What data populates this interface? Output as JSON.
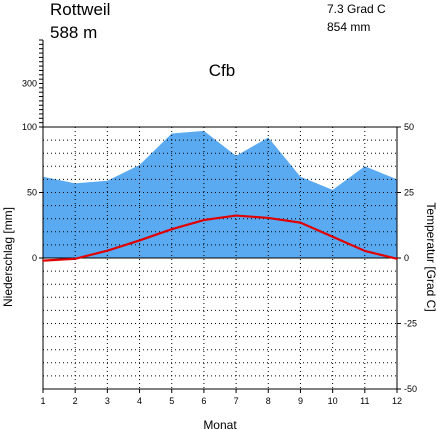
{
  "station": {
    "name": "Rottweil",
    "elevation": "588 m",
    "mean_temp": "7.3 Grad C",
    "annual_precip": "854 mm",
    "climate_class": "Cfb"
  },
  "chart_data": {
    "type": "area",
    "xlabel": "Monat",
    "ylabel_left": "Niederschlag [mm]",
    "ylabel_right": "Temperatur [Grad C]",
    "x": [
      1,
      2,
      3,
      4,
      5,
      6,
      7,
      8,
      9,
      10,
      11,
      12
    ],
    "x_tick_labels": [
      "1",
      "2",
      "3",
      "4",
      "5",
      "6",
      "7",
      "8",
      "9",
      "10",
      "11",
      "12"
    ],
    "left_ticks": [
      {
        "value": 300,
        "label": "300"
      },
      {
        "value": 100,
        "label": "100"
      },
      {
        "value": 50,
        "label": "50"
      },
      {
        "value": 0,
        "label": "0"
      }
    ],
    "right_ticks": [
      50,
      25,
      0,
      -25,
      -50
    ],
    "right_tick_labels": [
      "50",
      "25",
      "0",
      "-25",
      "-50"
    ],
    "left_ylim_lower": [
      -100,
      100
    ],
    "left_ylim_upper": [
      100,
      500
    ],
    "right_ylim": [
      -50,
      50
    ],
    "grid": true,
    "series": [
      {
        "type": "area",
        "axis": "left",
        "color": "#5aaaf2",
        "values": [
          62,
          57,
          59,
          71,
          95,
          97,
          78,
          92,
          62,
          52,
          70,
          60
        ]
      },
      {
        "type": "line",
        "axis": "right",
        "color": "#e00000",
        "values": [
          -1.0,
          -0.3,
          2.8,
          6.7,
          11.0,
          14.5,
          16.2,
          15.3,
          13.5,
          8.1,
          2.7,
          -0.3
        ]
      }
    ]
  }
}
